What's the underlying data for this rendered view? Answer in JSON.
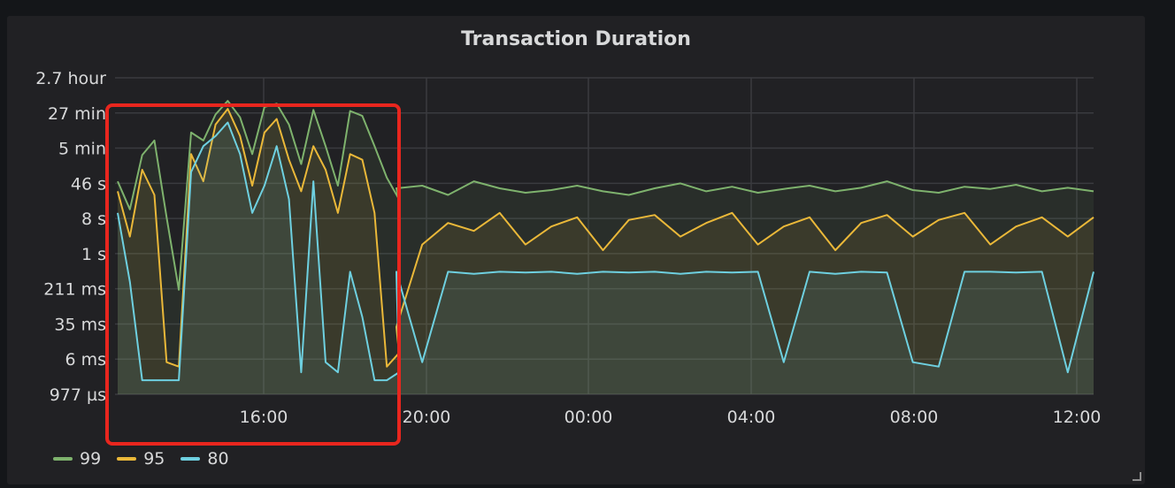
{
  "panel": {
    "title": "Transaction Duration"
  },
  "chart_data": {
    "type": "line",
    "title": "Transaction Duration",
    "x_ticks": [
      "16:00",
      "20:00",
      "00:00",
      "04:00",
      "08:00",
      "12:00"
    ],
    "y_ticks": [
      "2.7 hour",
      "27 min",
      "5 min",
      "46 s",
      "8 s",
      "1 s",
      "211 ms",
      "35 ms",
      "6 ms",
      "977 µs"
    ],
    "y_scale": "log",
    "x_range": [
      "13:00",
      "12:30"
    ],
    "y_range": [
      "977 µs",
      "2.7 hour"
    ],
    "grid": true,
    "legend_position": "bottom-left",
    "series": [
      {
        "name": "99",
        "color": "#7eb26d",
        "values_s": [
          50,
          12,
          190,
          400,
          8,
          0.2,
          600,
          400,
          1500,
          3000,
          1300,
          200,
          2200,
          2600,
          900,
          120,
          1900,
          300,
          40,
          1800,
          1400,
          300,
          60,
          20,
          35,
          40,
          25,
          50,
          35,
          28,
          32,
          40,
          30,
          25,
          35,
          45,
          30,
          38,
          28,
          34,
          40,
          30,
          36,
          50,
          32,
          28,
          38,
          34,
          42,
          30,
          36,
          30
        ]
      },
      {
        "name": "95",
        "color": "#eab839",
        "values_s": [
          30,
          3,
          90,
          25,
          0.005,
          0.004,
          200,
          50,
          900,
          2000,
          500,
          40,
          600,
          1200,
          150,
          30,
          300,
          90,
          10,
          200,
          150,
          10,
          0.004,
          0.008,
          0.03,
          2,
          6,
          4,
          10,
          2,
          5,
          8,
          1.5,
          7,
          9,
          3,
          6,
          10,
          2,
          5,
          8,
          1.5,
          6,
          9,
          3,
          7,
          10,
          2,
          5,
          8,
          3,
          8
        ]
      },
      {
        "name": "80",
        "color": "#6ed0e0",
        "values_s": [
          10,
          0.3,
          0.002,
          0.002,
          0.002,
          0.002,
          80,
          300,
          500,
          1000,
          200,
          10,
          40,
          300,
          20,
          0.003,
          50,
          0.005,
          0.003,
          0.5,
          0.05,
          0.002,
          0.002,
          0.003,
          0.5,
          0.005,
          0.5,
          0.45,
          0.5,
          0.48,
          0.5,
          0.45,
          0.5,
          0.48,
          0.5,
          0.45,
          0.5,
          0.48,
          0.5,
          0.005,
          0.5,
          0.45,
          0.5,
          0.48,
          0.005,
          0.004,
          0.5,
          0.5,
          0.48,
          0.5,
          0.003,
          0.5
        ]
      }
    ],
    "annotation": "red rectangle highlighting 13:00–19:30"
  }
}
